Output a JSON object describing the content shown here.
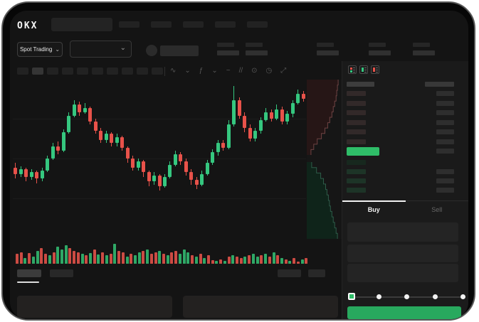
{
  "brand": {
    "name": "OKX"
  },
  "header": {
    "market_selector_label": "Spot Trading",
    "nav_item_count": 5
  },
  "ticker": {
    "stat_count": 5
  },
  "toolbar": {
    "timeframe_count": 10,
    "selected_timeframe_index": 1,
    "icons": [
      {
        "name": "indicators-icon",
        "glyph": "∿"
      },
      {
        "name": "chevron-down-icon",
        "glyph": "⌄"
      },
      {
        "name": "candle-type-icon",
        "glyph": "ƒ"
      },
      {
        "name": "chevron-down-icon",
        "glyph": "⌄"
      },
      {
        "name": "line-tools-icon",
        "glyph": "~"
      },
      {
        "name": "compare-icon",
        "glyph": "//"
      },
      {
        "name": "screenshot-icon",
        "glyph": "⊙"
      },
      {
        "name": "time-icon",
        "glyph": "◷"
      },
      {
        "name": "fullscreen-icon",
        "glyph": "⤢"
      }
    ]
  },
  "colors": {
    "up": "#35c77f",
    "down": "#e8524a",
    "volume_up": "#2fa866",
    "volume_down": "#cc4b43",
    "accent": "#2fbd68",
    "buy_button": "#28a95e",
    "depth_ask_fill": "#261616",
    "depth_ask_line": "#6e4343",
    "depth_bid_fill": "#0f241a",
    "depth_bid_line": "#2e5c49",
    "ob_ask_bar": "#322929",
    "ob_bid_bar": "#1d3427",
    "ob_amount_bar": "#2e2e2e"
  },
  "chart_data": {
    "type": "candlestick",
    "grid": true,
    "axis_labels_visible": false,
    "candles": [
      [
        44,
        40,
        47,
        37
      ],
      [
        40,
        43,
        45,
        38
      ],
      [
        43,
        38,
        44,
        35
      ],
      [
        38,
        41,
        43,
        36
      ],
      [
        41,
        37,
        42,
        34
      ],
      [
        37,
        42,
        44,
        35
      ],
      [
        42,
        50,
        52,
        41
      ],
      [
        50,
        58,
        60,
        49
      ],
      [
        58,
        55,
        61,
        53
      ],
      [
        55,
        67,
        69,
        54
      ],
      [
        67,
        78,
        80,
        66
      ],
      [
        78,
        85,
        88,
        77
      ],
      [
        85,
        80,
        87,
        78
      ],
      [
        80,
        83,
        86,
        79
      ],
      [
        83,
        74,
        84,
        72
      ],
      [
        74,
        68,
        76,
        66
      ],
      [
        68,
        62,
        70,
        60
      ],
      [
        62,
        66,
        68,
        60
      ],
      [
        66,
        60,
        67,
        58
      ],
      [
        60,
        64,
        66,
        58
      ],
      [
        64,
        57,
        65,
        55
      ],
      [
        57,
        50,
        58,
        47
      ],
      [
        50,
        44,
        52,
        42
      ],
      [
        44,
        48,
        50,
        42
      ],
      [
        48,
        41,
        49,
        38
      ],
      [
        41,
        35,
        42,
        32
      ],
      [
        35,
        39,
        41,
        33
      ],
      [
        39,
        32,
        40,
        29
      ],
      [
        32,
        38,
        40,
        31
      ],
      [
        38,
        46,
        48,
        37
      ],
      [
        46,
        53,
        55,
        45
      ],
      [
        53,
        48,
        54,
        46
      ],
      [
        48,
        41,
        50,
        39
      ],
      [
        41,
        36,
        43,
        33
      ],
      [
        36,
        33,
        38,
        30
      ],
      [
        33,
        40,
        42,
        32
      ],
      [
        40,
        47,
        49,
        39
      ],
      [
        47,
        54,
        56,
        46
      ],
      [
        54,
        60,
        62,
        52
      ],
      [
        60,
        57,
        62,
        55
      ],
      [
        57,
        72,
        75,
        56
      ],
      [
        72,
        88,
        97,
        71
      ],
      [
        88,
        78,
        90,
        76
      ],
      [
        78,
        70,
        80,
        67
      ],
      [
        70,
        63,
        72,
        61
      ],
      [
        63,
        68,
        70,
        61
      ],
      [
        68,
        75,
        77,
        66
      ],
      [
        75,
        80,
        83,
        74
      ],
      [
        80,
        76,
        82,
        74
      ],
      [
        76,
        82,
        85,
        75
      ],
      [
        82,
        74,
        84,
        72
      ],
      [
        74,
        79,
        81,
        72
      ],
      [
        79,
        86,
        88,
        77
      ],
      [
        86,
        92,
        95,
        85
      ],
      [
        92,
        89,
        94,
        87
      ]
    ],
    "volume": {
      "heights": [
        14,
        16,
        8,
        15,
        10,
        18,
        22,
        14,
        12,
        16,
        24,
        20,
        26,
        22,
        18,
        16,
        14,
        12,
        15,
        20,
        13,
        16,
        12,
        14,
        28,
        18,
        16,
        10,
        14,
        12,
        16,
        18,
        20,
        14,
        16,
        18,
        14,
        12,
        16,
        18,
        14,
        20,
        16,
        12,
        10,
        14,
        8,
        12,
        5,
        4,
        6,
        4,
        10,
        12,
        10,
        8,
        10,
        12,
        14,
        10,
        12,
        14,
        10,
        16,
        12,
        8,
        6,
        4,
        8,
        3,
        6,
        8
      ],
      "colors": [
        "r",
        "r",
        "g",
        "r",
        "g",
        "g",
        "r",
        "r",
        "g",
        "r",
        "g",
        "g",
        "g",
        "r",
        "r",
        "r",
        "g",
        "r",
        "g",
        "r",
        "g",
        "r",
        "g",
        "r",
        "g",
        "r",
        "r",
        "g",
        "r",
        "g",
        "g",
        "r",
        "g",
        "r",
        "r",
        "g",
        "r",
        "g",
        "r",
        "r",
        "g",
        "g",
        "g",
        "r",
        "g",
        "r",
        "g",
        "r",
        "r",
        "g",
        "r",
        "g",
        "r",
        "g",
        "r",
        "r",
        "g",
        "r",
        "g",
        "g",
        "r",
        "g",
        "r",
        "g",
        "r",
        "g",
        "r",
        "g",
        "r",
        "r",
        "g",
        "r"
      ]
    },
    "depth": {
      "asks_profile": [
        0.9,
        0.88,
        0.86,
        0.84,
        0.8,
        0.76,
        0.72,
        0.66,
        0.6,
        0.52,
        0.42,
        0.3,
        0.2,
        0.12
      ],
      "bids_profile": [
        0.14,
        0.28,
        0.4,
        0.48,
        0.54,
        0.58,
        0.62,
        0.65,
        0.68,
        0.72,
        0.76,
        0.8,
        0.84,
        0.88
      ]
    }
  },
  "orderbook": {
    "view_modes": [
      "book-all-icon",
      "book-bids-icon",
      "book-asks-icon"
    ],
    "ask_row_count": 6,
    "bid_row_count": 4,
    "last_price_row": {
      "highlight": "up"
    }
  },
  "trade_panel": {
    "tabs": [
      {
        "label": "Buy",
        "active": true
      },
      {
        "label": "Sell",
        "active": false
      }
    ],
    "input_row_count": 3,
    "slider": {
      "steps": 5,
      "selected_index": 0
    }
  },
  "bottom_tabs": {
    "left_count": 2,
    "right_count": 2,
    "active_index": 0
  }
}
